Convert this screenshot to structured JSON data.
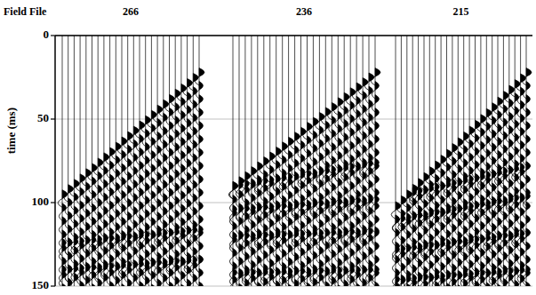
{
  "chart_data": {
    "type": "wiggle",
    "header": "Field File",
    "y_label": "time (ms)",
    "ylim": [
      0,
      150
    ],
    "yticks": [
      0,
      50,
      100,
      150
    ],
    "grid": true,
    "panels": [
      {
        "label": "266",
        "traces": 24,
        "first_break": [
          95,
          22
        ],
        "events": [
          [
            103,
            30
          ],
          [
            111,
            38
          ],
          [
            119,
            46
          ],
          [
            127,
            54
          ],
          [
            135,
            62
          ],
          [
            143,
            70
          ],
          [
            151,
            78
          ],
          [
            159,
            86
          ],
          [
            167,
            94
          ],
          [
            175,
            102
          ],
          [
            183,
            110
          ],
          [
            191,
            118
          ],
          [
            199,
            126
          ],
          [
            207,
            134
          ],
          [
            215,
            142
          ],
          [
            223,
            150
          ],
          [
            124,
            116
          ],
          [
            140,
            134
          ]
        ]
      },
      {
        "label": "236",
        "traces": 24,
        "first_break": [
          90,
          22
        ],
        "events": [
          [
            98,
            30
          ],
          [
            106,
            38
          ],
          [
            114,
            46
          ],
          [
            122,
            54
          ],
          [
            130,
            62
          ],
          [
            138,
            70
          ],
          [
            146,
            78
          ],
          [
            154,
            86
          ],
          [
            162,
            94
          ],
          [
            170,
            102
          ],
          [
            178,
            110
          ],
          [
            186,
            118
          ],
          [
            194,
            126
          ],
          [
            202,
            134
          ],
          [
            210,
            142
          ],
          [
            218,
            150
          ],
          [
            90,
            76
          ],
          [
            104,
            98
          ],
          [
            120,
            117
          ],
          [
            142,
            140
          ]
        ]
      },
      {
        "label": "215",
        "traces": 24,
        "first_break": [
          102,
          22
        ],
        "events": [
          [
            110,
            30
          ],
          [
            118,
            38
          ],
          [
            126,
            46
          ],
          [
            134,
            54
          ],
          [
            142,
            62
          ],
          [
            150,
            70
          ],
          [
            158,
            78
          ],
          [
            166,
            86
          ],
          [
            174,
            94
          ],
          [
            182,
            102
          ],
          [
            190,
            110
          ],
          [
            198,
            118
          ],
          [
            206,
            126
          ],
          [
            214,
            134
          ],
          [
            222,
            142
          ],
          [
            230,
            150
          ],
          [
            96,
            78
          ],
          [
            110,
            96
          ],
          [
            128,
            118
          ],
          [
            146,
            140
          ]
        ]
      }
    ]
  }
}
